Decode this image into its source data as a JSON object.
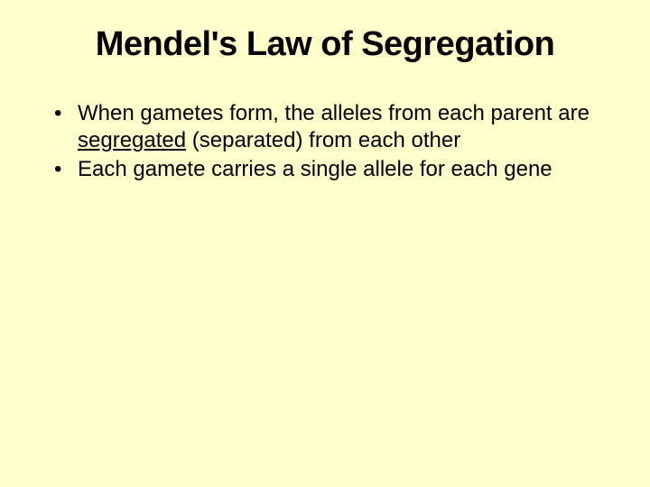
{
  "slide": {
    "background_color": "#ffffcc",
    "text_color": "#000000",
    "title": {
      "text": "Mendel's Law of Segregation",
      "fontsize": 38,
      "font_weight": "bold",
      "align": "center"
    },
    "bullets": {
      "fontsize": 24,
      "marker": "•",
      "items": [
        {
          "pre": "When gametes form, the alleles from each parent are ",
          "underlined": "segregated",
          "post": " (separated) from each other"
        },
        {
          "pre": "Each gamete carries a single allele for each gene",
          "underlined": "",
          "post": ""
        }
      ]
    }
  }
}
